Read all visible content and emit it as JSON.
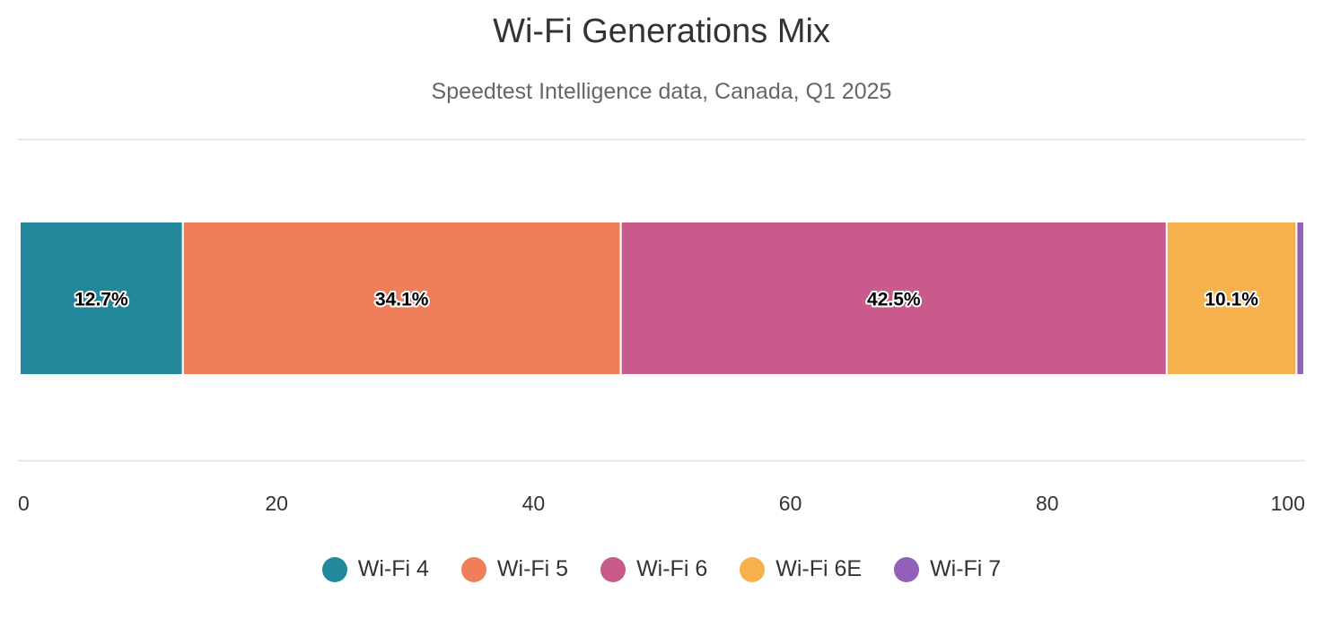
{
  "chart": {
    "title": "Wi-Fi Generations Mix",
    "subtitle": "Speedtest Intelligence data, Canada, Q1 2025"
  },
  "colors": {
    "Wi-Fi 4": "#24889c",
    "Wi-Fi 5": "#f07e5a",
    "Wi-Fi 6": "#c85a8c",
    "Wi-Fi 6E": "#f6b04c",
    "Wi-Fi 7": "#9160b8"
  },
  "chart_data": {
    "type": "bar",
    "orientation": "horizontal",
    "stacked": true,
    "title": "Wi-Fi Generations Mix",
    "subtitle": "Speedtest Intelligence data, Canada, Q1 2025",
    "xlim": [
      0,
      100
    ],
    "xticks": [
      "0",
      "20",
      "40",
      "60",
      "80",
      "100"
    ],
    "grid": false,
    "legend_position": "bottom",
    "series": [
      {
        "name": "Wi-Fi 4",
        "value": 12.7,
        "label": "12.7%"
      },
      {
        "name": "Wi-Fi 5",
        "value": 34.1,
        "label": "34.1%"
      },
      {
        "name": "Wi-Fi 6",
        "value": 42.5,
        "label": "42.5%"
      },
      {
        "name": "Wi-Fi 6E",
        "value": 10.1,
        "label": "10.1%"
      },
      {
        "name": "Wi-Fi 7",
        "value": 0.6,
        "label": ""
      }
    ]
  }
}
